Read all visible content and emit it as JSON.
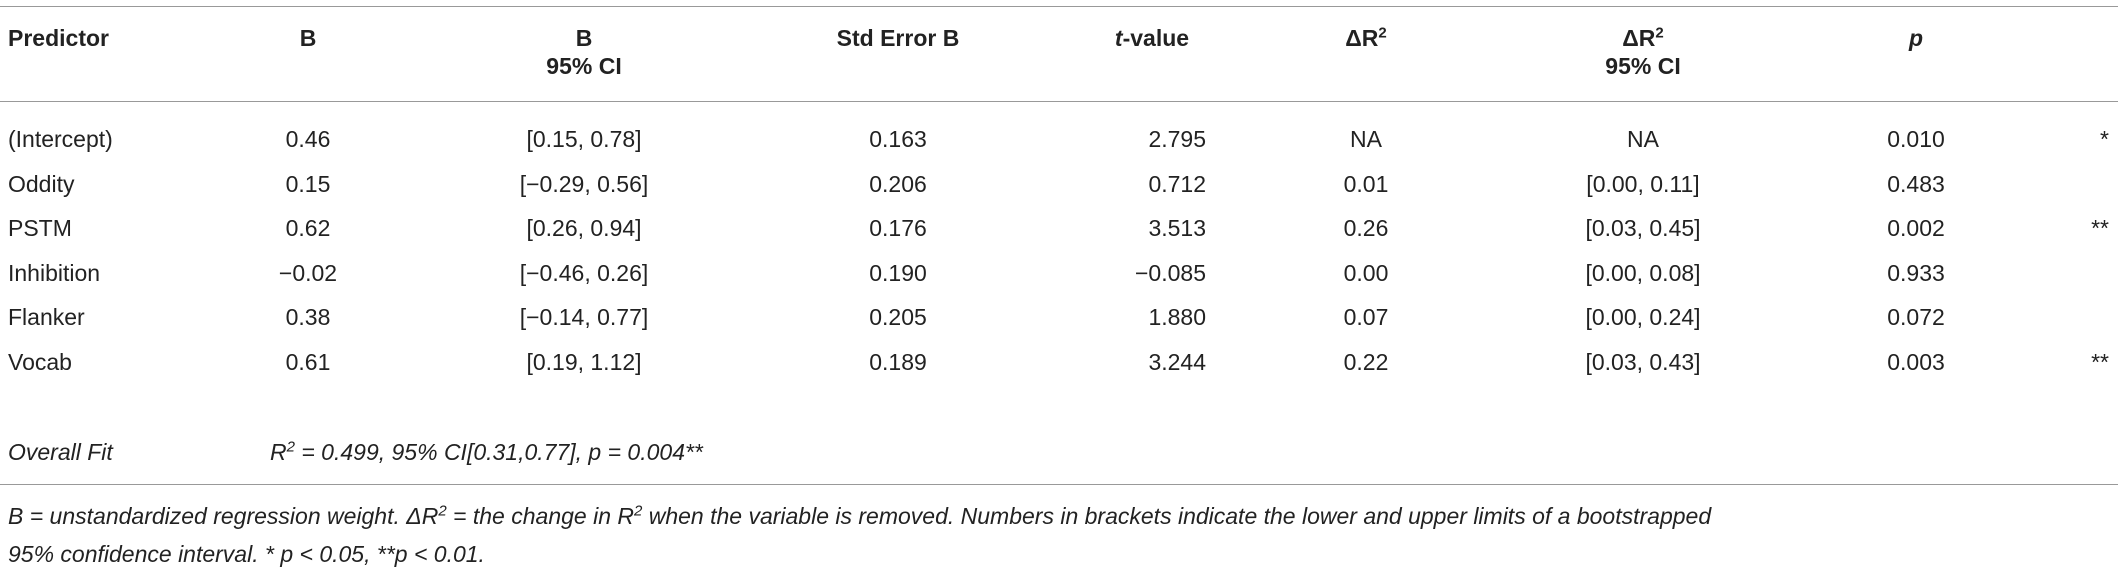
{
  "table": {
    "header": [
      "Predictor",
      "B",
      [
        "B",
        "95% CI"
      ],
      "Std Error B",
      [
        "t",
        "-value"
      ],
      [
        "ΔR",
        "2"
      ],
      [
        "ΔR",
        "2",
        "95% CI"
      ],
      "p"
    ],
    "rows": [
      [
        "(Intercept)",
        "0.46",
        "[0.15, 0.78]",
        "0.163",
        "2.795",
        "NA",
        "NA",
        "0.010",
        "*"
      ],
      [
        "Oddity",
        "0.15",
        "[−0.29, 0.56]",
        "0.206",
        "0.712",
        "0.01",
        "[0.00, 0.11]",
        "0.483",
        null
      ],
      [
        "PSTM",
        "0.62",
        "[0.26, 0.94]",
        "0.176",
        "3.513",
        "0.26",
        "[0.03, 0.45]",
        "0.002",
        "**"
      ],
      [
        "Inhibition",
        "−0.02",
        "[−0.46, 0.26]",
        "0.190",
        "−0.085",
        "0.00",
        "[0.00, 0.08]",
        "0.933",
        null
      ],
      [
        "Flanker",
        "0.38",
        "[−0.14, 0.77]",
        "0.205",
        "1.880",
        "0.07",
        "[0.00, 0.24]",
        "0.072",
        null
      ],
      [
        "Vocab",
        "0.61",
        "[0.19, 1.12]",
        "0.189",
        "3.244",
        "0.22",
        "[0.03, 0.43]",
        "0.003",
        "**"
      ]
    ],
    "overall_fit": {
      "label": "Overall Fit",
      "text": [
        "R",
        "2",
        " = 0.499, 95% CI[0.31,0.77], p = 0.004**"
      ]
    }
  },
  "footnote": [
    "B = unstandardized regression weight. ΔR",
    "2",
    " = the change in R",
    "2",
    " when the variable is removed. Numbers in brackets indicate the lower and upper limits of a bootstrapped",
    "95% confidence interval. * p < 0.05, **p < 0.01."
  ]
}
